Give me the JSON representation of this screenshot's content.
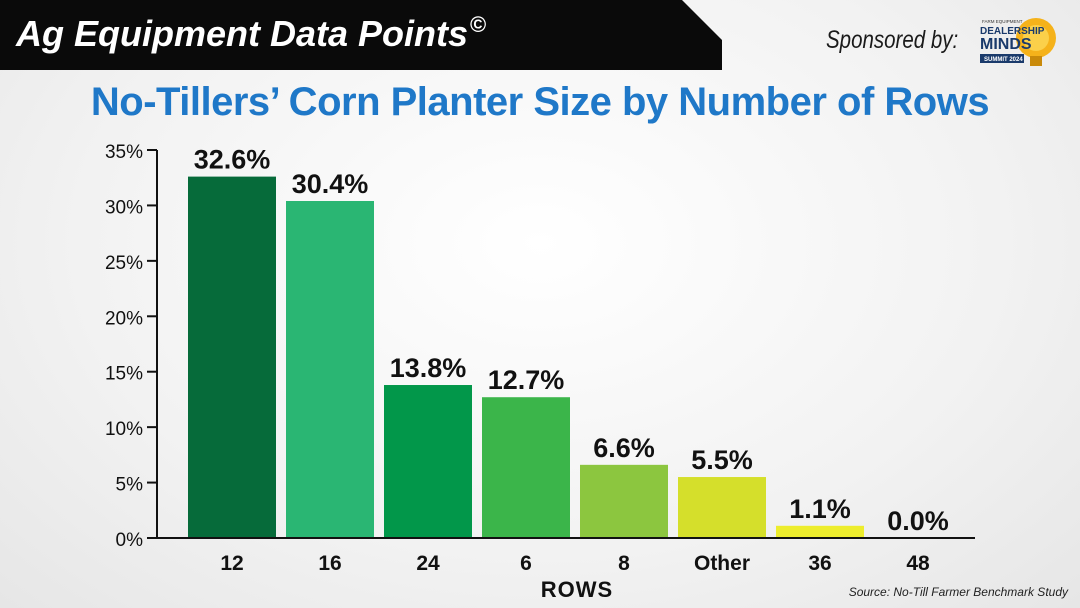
{
  "header": {
    "title": "Ag Equipment Data Points",
    "title_mark": "©",
    "sponsor_label": "Sponsored by:",
    "sponsor_logo": {
      "line1": "FARM EQUIPMENT",
      "line2": "DEALERSHIP",
      "line3": "MINDS",
      "line4": "SUMMIT 2024"
    }
  },
  "footer": {
    "source": "Source: No-Till Farmer Benchmark Study"
  },
  "colors": {
    "banner": "#0a0a0a",
    "title": "#1f78c8"
  },
  "chart_data": {
    "type": "bar",
    "title": "No-Tillers’ Corn Planter Size by Number of Rows",
    "xlabel": "ROWS",
    "ylabel": "",
    "ylim": [
      0,
      35
    ],
    "yticks": [
      0,
      5,
      10,
      15,
      20,
      25,
      30,
      35
    ],
    "ytick_labels": [
      "0%",
      "5%",
      "10%",
      "15%",
      "20%",
      "25%",
      "30%",
      "35%"
    ],
    "grid": false,
    "categories": [
      "12",
      "16",
      "24",
      "6",
      "8",
      "Other",
      "36",
      "48"
    ],
    "values": [
      32.6,
      30.4,
      13.8,
      12.7,
      6.6,
      5.5,
      1.1,
      0.0
    ],
    "data_labels": [
      "32.6%",
      "30.4%",
      "13.8%",
      "12.7%",
      "6.6%",
      "5.5%",
      "1.1%",
      "0.0%"
    ],
    "bar_colors": [
      "#066b3a",
      "#2ab673",
      "#02974a",
      "#3bb54a",
      "#8cc63f",
      "#d5df2b",
      "#eded2d",
      "#f0f040"
    ]
  }
}
